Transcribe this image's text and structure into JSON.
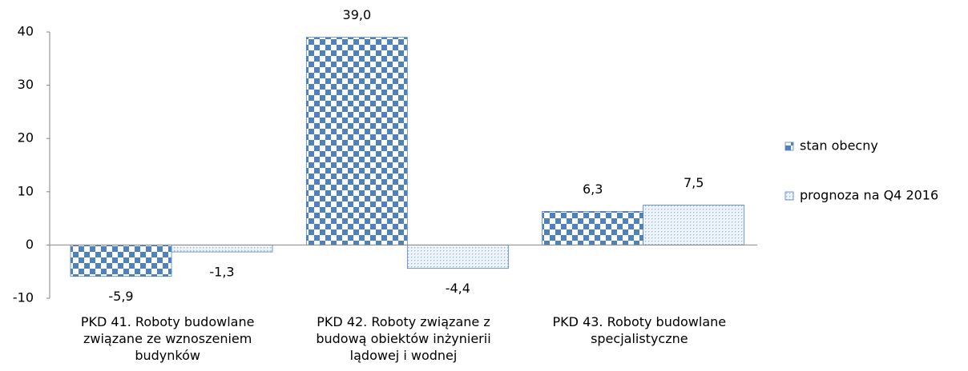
{
  "chart_data": {
    "type": "bar",
    "categories": [
      "PKD 41. Roboty budowlane związane ze wznoszeniem budynków",
      "PKD 42. Roboty związane z budową obiektów inżynierii lądowej i wodnej",
      "PKD 43. Roboty budowlane specjalistyczne"
    ],
    "series": [
      {
        "name": "stan obecny",
        "color": "#4f81bd",
        "pattern": "checker",
        "values": [
          -5.9,
          39.0,
          6.3
        ],
        "value_labels": [
          "-5,9",
          "39,0",
          "6,3"
        ]
      },
      {
        "name": "prognoza na Q4 2016",
        "color": "#8fb4e3",
        "pattern": "dots",
        "values": [
          -1.3,
          -4.4,
          7.5
        ],
        "value_labels": [
          "-1,3",
          "-4,4",
          "7,5"
        ]
      }
    ],
    "ylim": [
      -10,
      40
    ],
    "yticks": [
      -10,
      0,
      10,
      20,
      30,
      40
    ],
    "legend": "right"
  }
}
